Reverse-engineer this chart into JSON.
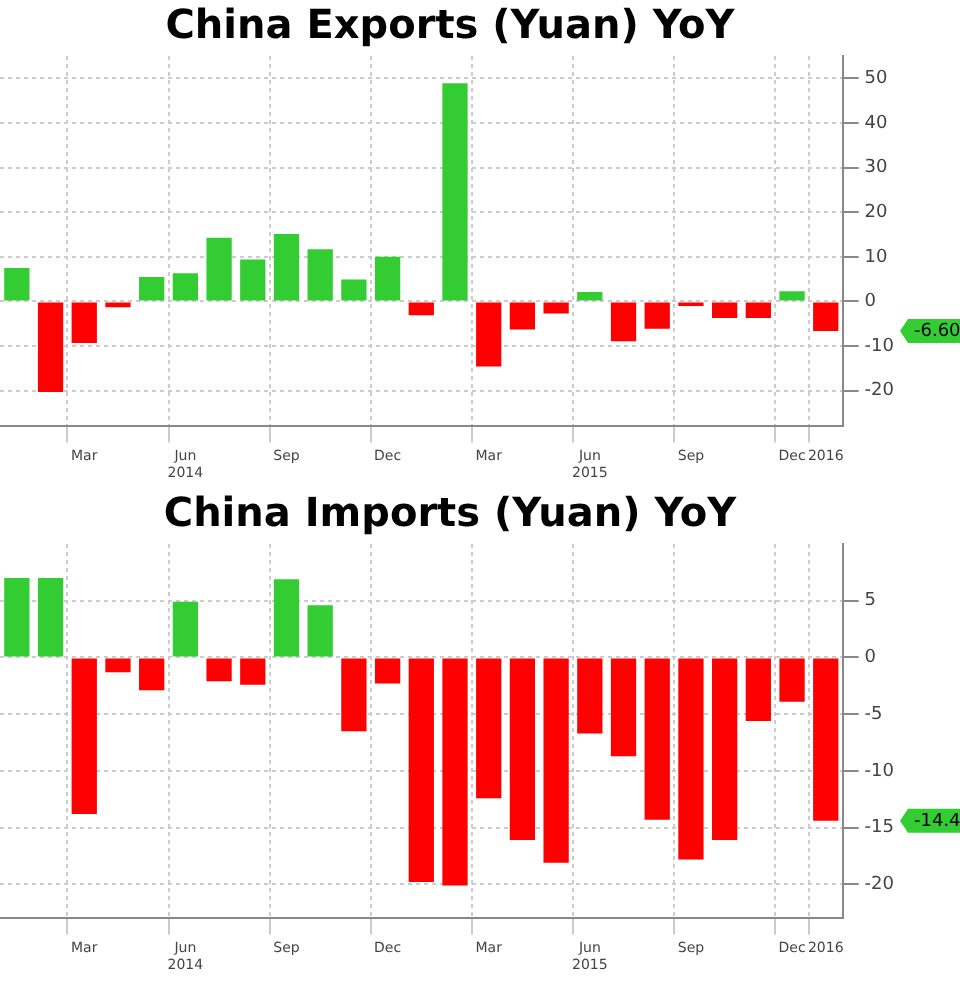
{
  "chart_data": [
    {
      "type": "bar",
      "title": "China Exports (Yuan) YoY",
      "categories": [
        null,
        null,
        "Mar",
        null,
        null,
        "Jun\n2014",
        null,
        null,
        "Sep",
        null,
        null,
        "Dec",
        null,
        null,
        "Mar",
        null,
        null,
        "Jun\n2015",
        null,
        null,
        "Sep",
        null,
        null,
        "Dec",
        "2016"
      ],
      "values": [
        7.5,
        -20.3,
        -9.3,
        -1.3,
        5.5,
        6.3,
        14.3,
        9.4,
        15.1,
        11.7,
        4.9,
        10.0,
        -3.1,
        48.9,
        -14.6,
        -6.3,
        -2.7,
        2.1,
        -8.9,
        -6.1,
        -1.0,
        -3.7,
        -3.7,
        2.3,
        -6.6
      ],
      "colors": [
        "#33cc33",
        "#ff0000",
        "#ff0000",
        "#ff0000",
        "#33cc33",
        "#33cc33",
        "#33cc33",
        "#33cc33",
        "#33cc33",
        "#33cc33",
        "#33cc33",
        "#33cc33",
        "#ff0000",
        "#33cc33",
        "#ff0000",
        "#ff0000",
        "#ff0000",
        "#33cc33",
        "#ff0000",
        "#ff0000",
        "#ff0000",
        "#ff0000",
        "#ff0000",
        "#33cc33",
        "#ff0000"
      ],
      "ylim": [
        -28,
        55
      ],
      "yticks": [
        -20,
        -10,
        0,
        10,
        20,
        30,
        40,
        50
      ],
      "grid": true,
      "annotations": [
        "-6.60"
      ]
    },
    {
      "type": "bar",
      "title": "China Imports (Yuan) YoY",
      "categories": [
        null,
        null,
        "Mar",
        null,
        null,
        "Jun\n2014",
        null,
        null,
        "Sep",
        null,
        null,
        "Dec",
        null,
        null,
        "Mar",
        null,
        null,
        "Jun\n2015",
        null,
        null,
        "Sep",
        null,
        null,
        "Dec",
        "2016"
      ],
      "values": [
        7.0,
        7.0,
        -13.8,
        -1.3,
        -2.9,
        4.9,
        -2.1,
        -2.4,
        6.9,
        4.6,
        -6.5,
        -2.3,
        -19.8,
        -20.1,
        -12.4,
        -16.1,
        -18.1,
        -6.7,
        -8.7,
        -14.3,
        -17.8,
        -16.1,
        -5.6,
        -3.9,
        -14.4
      ],
      "colors": [
        "#33cc33",
        "#33cc33",
        "#ff0000",
        "#ff0000",
        "#ff0000",
        "#33cc33",
        "#ff0000",
        "#ff0000",
        "#33cc33",
        "#33cc33",
        "#ff0000",
        "#ff0000",
        "#ff0000",
        "#ff0000",
        "#ff0000",
        "#ff0000",
        "#ff0000",
        "#ff0000",
        "#ff0000",
        "#ff0000",
        "#ff0000",
        "#ff0000",
        "#ff0000",
        "#ff0000",
        "#ff0000"
      ],
      "ylim": [
        -23,
        10
      ],
      "yticks": [
        -20,
        -15,
        -10,
        -5,
        0,
        5
      ],
      "grid": true,
      "annotations": [
        "-14.4"
      ]
    }
  ]
}
